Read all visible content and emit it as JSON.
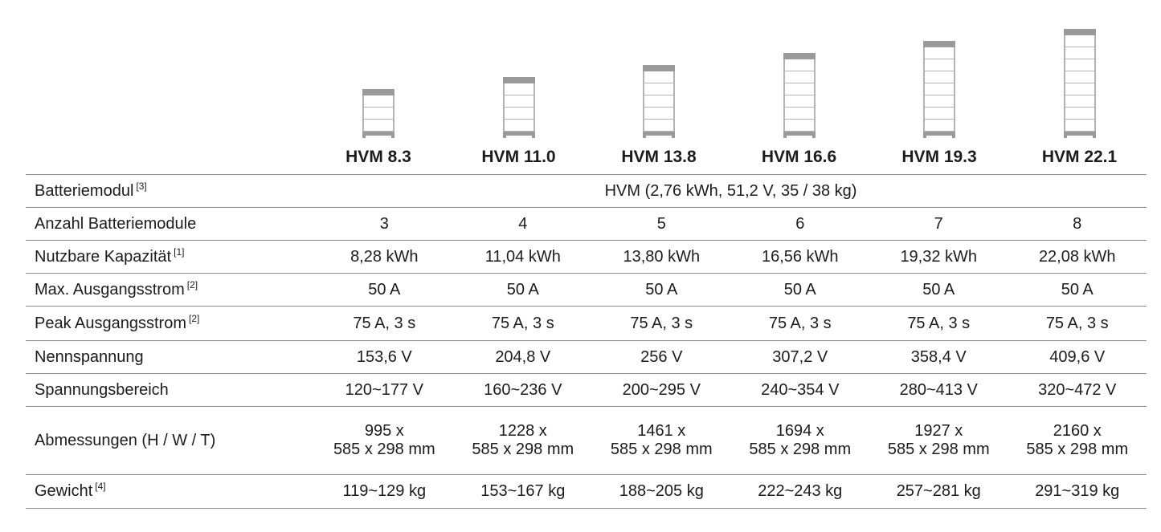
{
  "products": [
    {
      "name": "HVM 8.3",
      "modules": 3
    },
    {
      "name": "HVM 11.0",
      "modules": 4
    },
    {
      "name": "HVM 13.8",
      "modules": 5
    },
    {
      "name": "HVM 16.6",
      "modules": 6
    },
    {
      "name": "HVM 19.3",
      "modules": 7
    },
    {
      "name": "HVM 22.1",
      "modules": 8
    }
  ],
  "specs": {
    "battery_module": {
      "label": "Batteriemodul",
      "note": "[3]",
      "value": "HVM (2,76 kWh, 51,2 V, 35 / 38 kg)"
    },
    "module_count": {
      "label": "Anzahl Batteriemodule",
      "values": [
        "3",
        "4",
        "5",
        "6",
        "7",
        "8"
      ]
    },
    "usable_capacity": {
      "label": "Nutzbare Kapazität",
      "note": "[1]",
      "values": [
        "8,28 kWh",
        "11,04 kWh",
        "13,80 kWh",
        "16,56 kWh",
        "19,32 kWh",
        "22,08 kWh"
      ]
    },
    "max_output_current": {
      "label": "Max. Ausgangsstrom",
      "note": "[2]",
      "values": [
        "50 A",
        "50 A",
        "50 A",
        "50 A",
        "50 A",
        "50 A"
      ]
    },
    "peak_output_current": {
      "label": "Peak Ausgangsstrom",
      "note": "[2]",
      "values": [
        "75 A, 3 s",
        "75 A, 3 s",
        "75 A, 3 s",
        "75 A, 3 s",
        "75 A, 3 s",
        "75 A, 3 s"
      ]
    },
    "nominal_voltage": {
      "label": "Nennspannung",
      "values": [
        "153,6 V",
        "204,8 V",
        "256 V",
        "307,2 V",
        "358,4 V",
        "409,6 V"
      ]
    },
    "voltage_range": {
      "label": "Spannungsbereich",
      "values": [
        "120~177 V",
        "160~236 V",
        "200~295 V",
        "240~354 V",
        "280~413 V",
        "320~472 V"
      ]
    },
    "dimensions": {
      "label": "Abmessungen (H / W / T)",
      "values": [
        [
          "995 x",
          "585 x 298 mm"
        ],
        [
          "1228 x",
          "585 x 298 mm"
        ],
        [
          "1461 x",
          "585 x 298 mm"
        ],
        [
          "1694 x",
          "585 x 298 mm"
        ],
        [
          "1927 x",
          "585 x 298 mm"
        ],
        [
          "2160 x",
          "585 x 298 mm"
        ]
      ]
    },
    "weight": {
      "label": "Gewicht",
      "note": "[4]",
      "values": [
        "119~129 kg",
        "153~167 kg",
        "188~205 kg",
        "222~243 kg",
        "257~281 kg",
        "291~319 kg"
      ]
    }
  }
}
